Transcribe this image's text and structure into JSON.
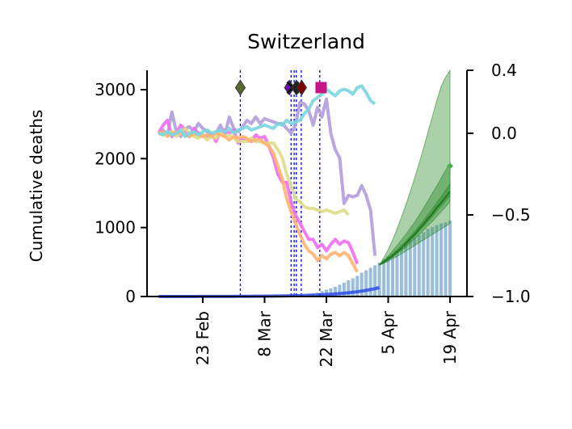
{
  "chart_data": {
    "type": "line",
    "title": "Switzerland",
    "ylabel": "Cumulative deaths",
    "xlabel": "",
    "x_range_day": [
      -10,
      70
    ],
    "left_axis": {
      "ylim": [
        0,
        3300
      ],
      "ticks": [
        0,
        1000,
        2000,
        3000
      ],
      "tick_labels": [
        "0",
        "1000",
        "2000",
        "3000"
      ]
    },
    "right_axis": {
      "ylim": [
        -1.0,
        0.4
      ],
      "ticks": [
        -1.0,
        -0.5,
        0.0,
        0.4
      ],
      "tick_labels": [
        "−1.0",
        "−0.5",
        "0.0",
        "0.4"
      ]
    },
    "x_ticks": [
      {
        "day": 0,
        "label": "23 Feb"
      },
      {
        "day": 14,
        "label": "8 Mar"
      },
      {
        "day": 28,
        "label": "22 Mar"
      },
      {
        "day": 42,
        "label": "5 Apr"
      },
      {
        "day": 56,
        "label": "19 Apr"
      }
    ],
    "event_lines_day": [
      8.5,
      20,
      20.7,
      21.2,
      22.3,
      26.5
    ],
    "event_markers": [
      {
        "day": 8.5,
        "value": 0.28,
        "shape": "diamond",
        "color": "#556b2f"
      },
      {
        "day": 19.6,
        "value": 0.28,
        "shape": "diamond",
        "color": "#6a0dad"
      },
      {
        "day": 20.4,
        "value": 0.28,
        "shape": "x",
        "color": "#111111"
      },
      {
        "day": 21.2,
        "value": 0.28,
        "shape": "diamond",
        "color": "#222222"
      },
      {
        "day": 22.4,
        "value": 0.28,
        "shape": "diamond",
        "color": "#800000"
      },
      {
        "day": 26.8,
        "value": 0.28,
        "shape": "square",
        "color": "#c71585"
      }
    ],
    "mobility_series": [
      {
        "color": "#b39ddb",
        "start_day": -10,
        "values": [
          0.0,
          0.02,
          -0.01,
          0.13,
          0.01,
          -0.02,
          0.03,
          0.04,
          0.01,
          0.06,
          0.03,
          0.01,
          -0.01,
          0.0,
          0.05,
          -0.01,
          0.1,
          0.03,
          0.01,
          0.04,
          0.08,
          0.06,
          0.1,
          0.06,
          0.09,
          0.08,
          0.07,
          0.06,
          0.06,
          0.03,
          0.0,
          0.05,
          0.19,
          0.18,
          0.14,
          0.05,
          0.16,
          0.1,
          0.21,
          0.0,
          -0.1,
          -0.15,
          -0.43,
          -0.38,
          -0.39,
          -0.38,
          -0.32,
          -0.38,
          -0.47,
          -0.75
        ]
      },
      {
        "color": "#f06ef0",
        "start_day": -10,
        "values": [
          0.0,
          0.05,
          0.08,
          -0.02,
          0.0,
          0.05,
          0.02,
          -0.02,
          0.03,
          0.0,
          -0.01,
          -0.02,
          0.0,
          -0.05,
          0.01,
          0.02,
          0.0,
          0.02,
          -0.06,
          -0.03,
          -0.04,
          -0.05,
          -0.01,
          -0.03,
          -0.02,
          -0.08,
          -0.15,
          -0.25,
          -0.3,
          -0.3,
          -0.42,
          -0.5,
          -0.55,
          -0.6,
          -0.65,
          -0.65,
          -0.7,
          -0.68,
          -0.72,
          -0.68,
          -0.65,
          -0.68,
          -0.66,
          -0.67,
          -0.73,
          -0.8
        ]
      },
      {
        "color": "#dddd88",
        "start_day": -10,
        "values": [
          0.0,
          -0.01,
          0.0,
          0.01,
          -0.02,
          0.0,
          0.03,
          0.0,
          -0.02,
          -0.03,
          -0.01,
          -0.04,
          -0.02,
          -0.03,
          0.0,
          -0.02,
          -0.01,
          -0.03,
          -0.05,
          -0.05,
          -0.05,
          -0.03,
          -0.05,
          -0.05,
          -0.06,
          -0.06,
          -0.06,
          -0.1,
          -0.15,
          -0.25,
          -0.32,
          -0.4,
          -0.42,
          -0.45,
          -0.46,
          -0.46,
          -0.47,
          -0.48,
          -0.47,
          -0.48,
          -0.49,
          -0.48,
          -0.47,
          -0.5
        ]
      },
      {
        "color": "#ffb570",
        "start_day": -10,
        "values": [
          0.0,
          0.01,
          -0.02,
          0.0,
          0.01,
          0.0,
          -0.01,
          -0.02,
          0.0,
          -0.01,
          -0.02,
          -0.01,
          -0.02,
          0.0,
          -0.01,
          -0.02,
          -0.04,
          -0.02,
          -0.03,
          -0.02,
          -0.03,
          -0.05,
          -0.04,
          -0.04,
          -0.06,
          -0.08,
          -0.12,
          -0.2,
          -0.28,
          -0.4,
          -0.48,
          -0.55,
          -0.62,
          -0.68,
          -0.72,
          -0.74,
          -0.78,
          -0.75,
          -0.77,
          -0.74,
          -0.73,
          -0.75,
          -0.73,
          -0.75,
          -0.8,
          -0.85
        ]
      },
      {
        "color": "#7ad6e0",
        "start_day": -10,
        "values": [
          0.0,
          -0.01,
          0.01,
          -0.01,
          0.0,
          0.02,
          -0.02,
          0.0,
          0.01,
          -0.01,
          0.01,
          0.02,
          0.0,
          0.01,
          0.02,
          0.01,
          0.03,
          0.0,
          0.02,
          0.03,
          0.04,
          0.02,
          0.03,
          0.04,
          0.05,
          0.04,
          0.03,
          0.06,
          0.05,
          0.08,
          0.06,
          0.07,
          0.08,
          0.12,
          0.15,
          0.2,
          0.22,
          0.24,
          0.27,
          0.25,
          0.23,
          0.26,
          0.27,
          0.26,
          0.24,
          0.28,
          0.29,
          0.25,
          0.2,
          0.18
        ]
      }
    ],
    "observed_deaths": {
      "start_day": 24,
      "bar_color": "#9bbfdb",
      "values": [
        33,
        43,
        56,
        80,
        101,
        120,
        140,
        171,
        200,
        235,
        264,
        300,
        345,
        380,
        415,
        452,
        492,
        540,
        580,
        621,
        668,
        720,
        765,
        811,
        852,
        893,
        931,
        981,
        1010,
        1036,
        1059,
        1076,
        1100
      ]
    },
    "fit_early": {
      "color": "#2b4ce8",
      "start_day": -10,
      "end_day": 40,
      "a": 0.25,
      "k": 0.125
    },
    "forecast": {
      "start_day": 40,
      "end_day": 56,
      "median": [
        460,
        500,
        548,
        590,
        650,
        700,
        770,
        840,
        900,
        980,
        1050,
        1130,
        1200,
        1290,
        1360,
        1440,
        1520
      ],
      "band_outer": {
        "color": "#2e8b2e",
        "low": [
          460,
          480,
          510,
          550,
          580,
          620,
          660,
          700,
          740,
          780,
          820,
          860,
          900,
          940,
          980,
          1020,
          1060
        ],
        "high": [
          460,
          560,
          680,
          820,
          980,
          1150,
          1330,
          1520,
          1720,
          1930,
          2150,
          2380,
          2610,
          2840,
          3050,
          3180,
          3280
        ]
      },
      "band_mid": {
        "color": "#2e8b2e",
        "low": [
          460,
          490,
          530,
          570,
          620,
          670,
          720,
          780,
          840,
          900,
          960,
          1030,
          1090,
          1160,
          1230,
          1300,
          1380
        ],
        "high": [
          460,
          520,
          590,
          660,
          740,
          820,
          900,
          990,
          1080,
          1180,
          1280,
          1390,
          1500,
          1600,
          1720,
          1830,
          1940
        ]
      },
      "band_inner": {
        "color": "#2e8b2e",
        "low": [
          460,
          495,
          540,
          585,
          640,
          690,
          750,
          815,
          875,
          950,
          1015,
          1090,
          1160,
          1240,
          1310,
          1385,
          1460
        ],
        "high": [
          460,
          510,
          565,
          620,
          680,
          740,
          805,
          875,
          945,
          1025,
          1100,
          1185,
          1270,
          1360,
          1450,
          1540,
          1640
        ]
      }
    },
    "grid": false,
    "legend": "none"
  }
}
